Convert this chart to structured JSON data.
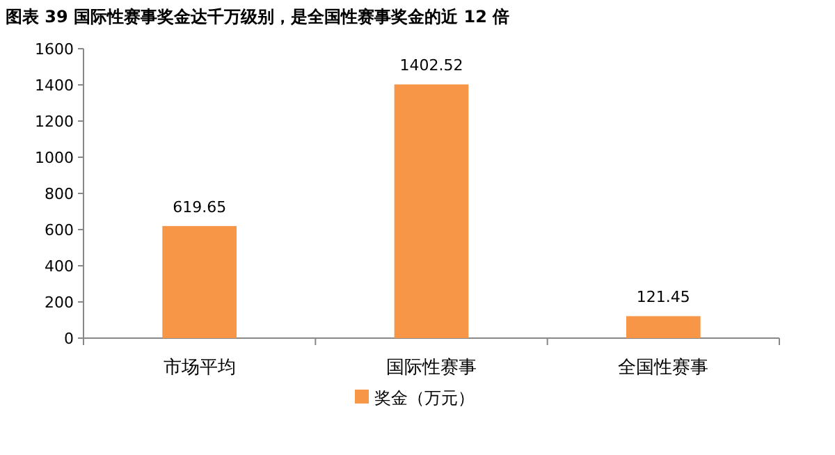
{
  "chart_data": {
    "type": "bar",
    "title": "图表 39 国际性赛事奖金达千万级别，是全国性赛事奖金的近 12 倍",
    "categories": [
      "市场平均",
      "国际性赛事",
      "全国性赛事"
    ],
    "series": [
      {
        "name": "奖金（万元）",
        "color": "#f79646",
        "values": [
          619.65,
          1402.52,
          121.45
        ]
      }
    ],
    "ylim": [
      0,
      1600
    ],
    "yticks": [
      0,
      200,
      400,
      600,
      800,
      1000,
      1200,
      1400,
      1600
    ],
    "data_labels": true,
    "legend": "bottom",
    "grid": false
  }
}
